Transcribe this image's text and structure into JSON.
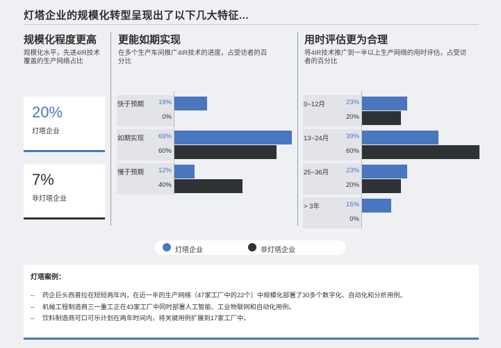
{
  "title": "灯塔企业的规模化转型呈现出了以下几大特征...",
  "colors": {
    "lighthouse": "#4a76bf",
    "non_lighthouse": "#2f3234"
  },
  "scale": {
    "title": "规模化程度更高",
    "subtitle_lines": [
      "规模化水平，先进4IR技术",
      "覆盖的生产网络占比"
    ],
    "cards": [
      {
        "value": "20%",
        "label": "灯塔企业"
      },
      {
        "value": "7%",
        "label": "非灯塔企业"
      }
    ]
  },
  "legend": {
    "lighthouse": "灯塔企业",
    "non_lighthouse": "非灯塔企业"
  },
  "chart_data": [
    {
      "type": "bar",
      "title": "更能如期实现",
      "subtitle_lines": [
        "在多个生产车间推广4IR技术的进度，占受访者的百",
        "分比"
      ],
      "categories": [
        "快于预期",
        "如期实现",
        "慢于预期"
      ],
      "series": [
        {
          "name": "灯塔企业",
          "values": [
            19,
            69,
            12
          ],
          "labels": [
            "19%",
            "69%",
            "12%"
          ]
        },
        {
          "name": "非灯塔企业",
          "values": [
            0,
            60,
            40
          ],
          "labels": [
            "0%",
            "60%",
            "40%"
          ]
        }
      ]
    },
    {
      "type": "bar",
      "title": "用时评估更为合理",
      "subtitle_lines": [
        "将4IR技术推广到一半以上生产网络的用时评估，占受访",
        "者的百分比"
      ],
      "categories": [
        "0~12月",
        "13~24月",
        "25~36月",
        "> 3年"
      ],
      "series": [
        {
          "name": "灯塔企业",
          "values": [
            23,
            39,
            23,
            15
          ],
          "labels": [
            "23%",
            "39%",
            "23%",
            "15%"
          ]
        },
        {
          "name": "非灯塔企业",
          "values": [
            20,
            60,
            20,
            0
          ],
          "labels": [
            "20%",
            "60%",
            "20%",
            "0%"
          ]
        }
      ]
    }
  ],
  "cases": {
    "title": "灯塔案例：",
    "items": [
      "药企巨头西普拉在短短两年内，在近一半的生产网络（47家工厂中的22个）中规模化部署了30多个数字化、自动化和分析用例。",
      "机械工程制造商三一重工正在43家工厂中同时部署人工智能、工业物联网和自动化用例。",
      "饮料制造商可口可乐计划在两年时间内，将关键用例扩展到17家工厂中。"
    ]
  }
}
